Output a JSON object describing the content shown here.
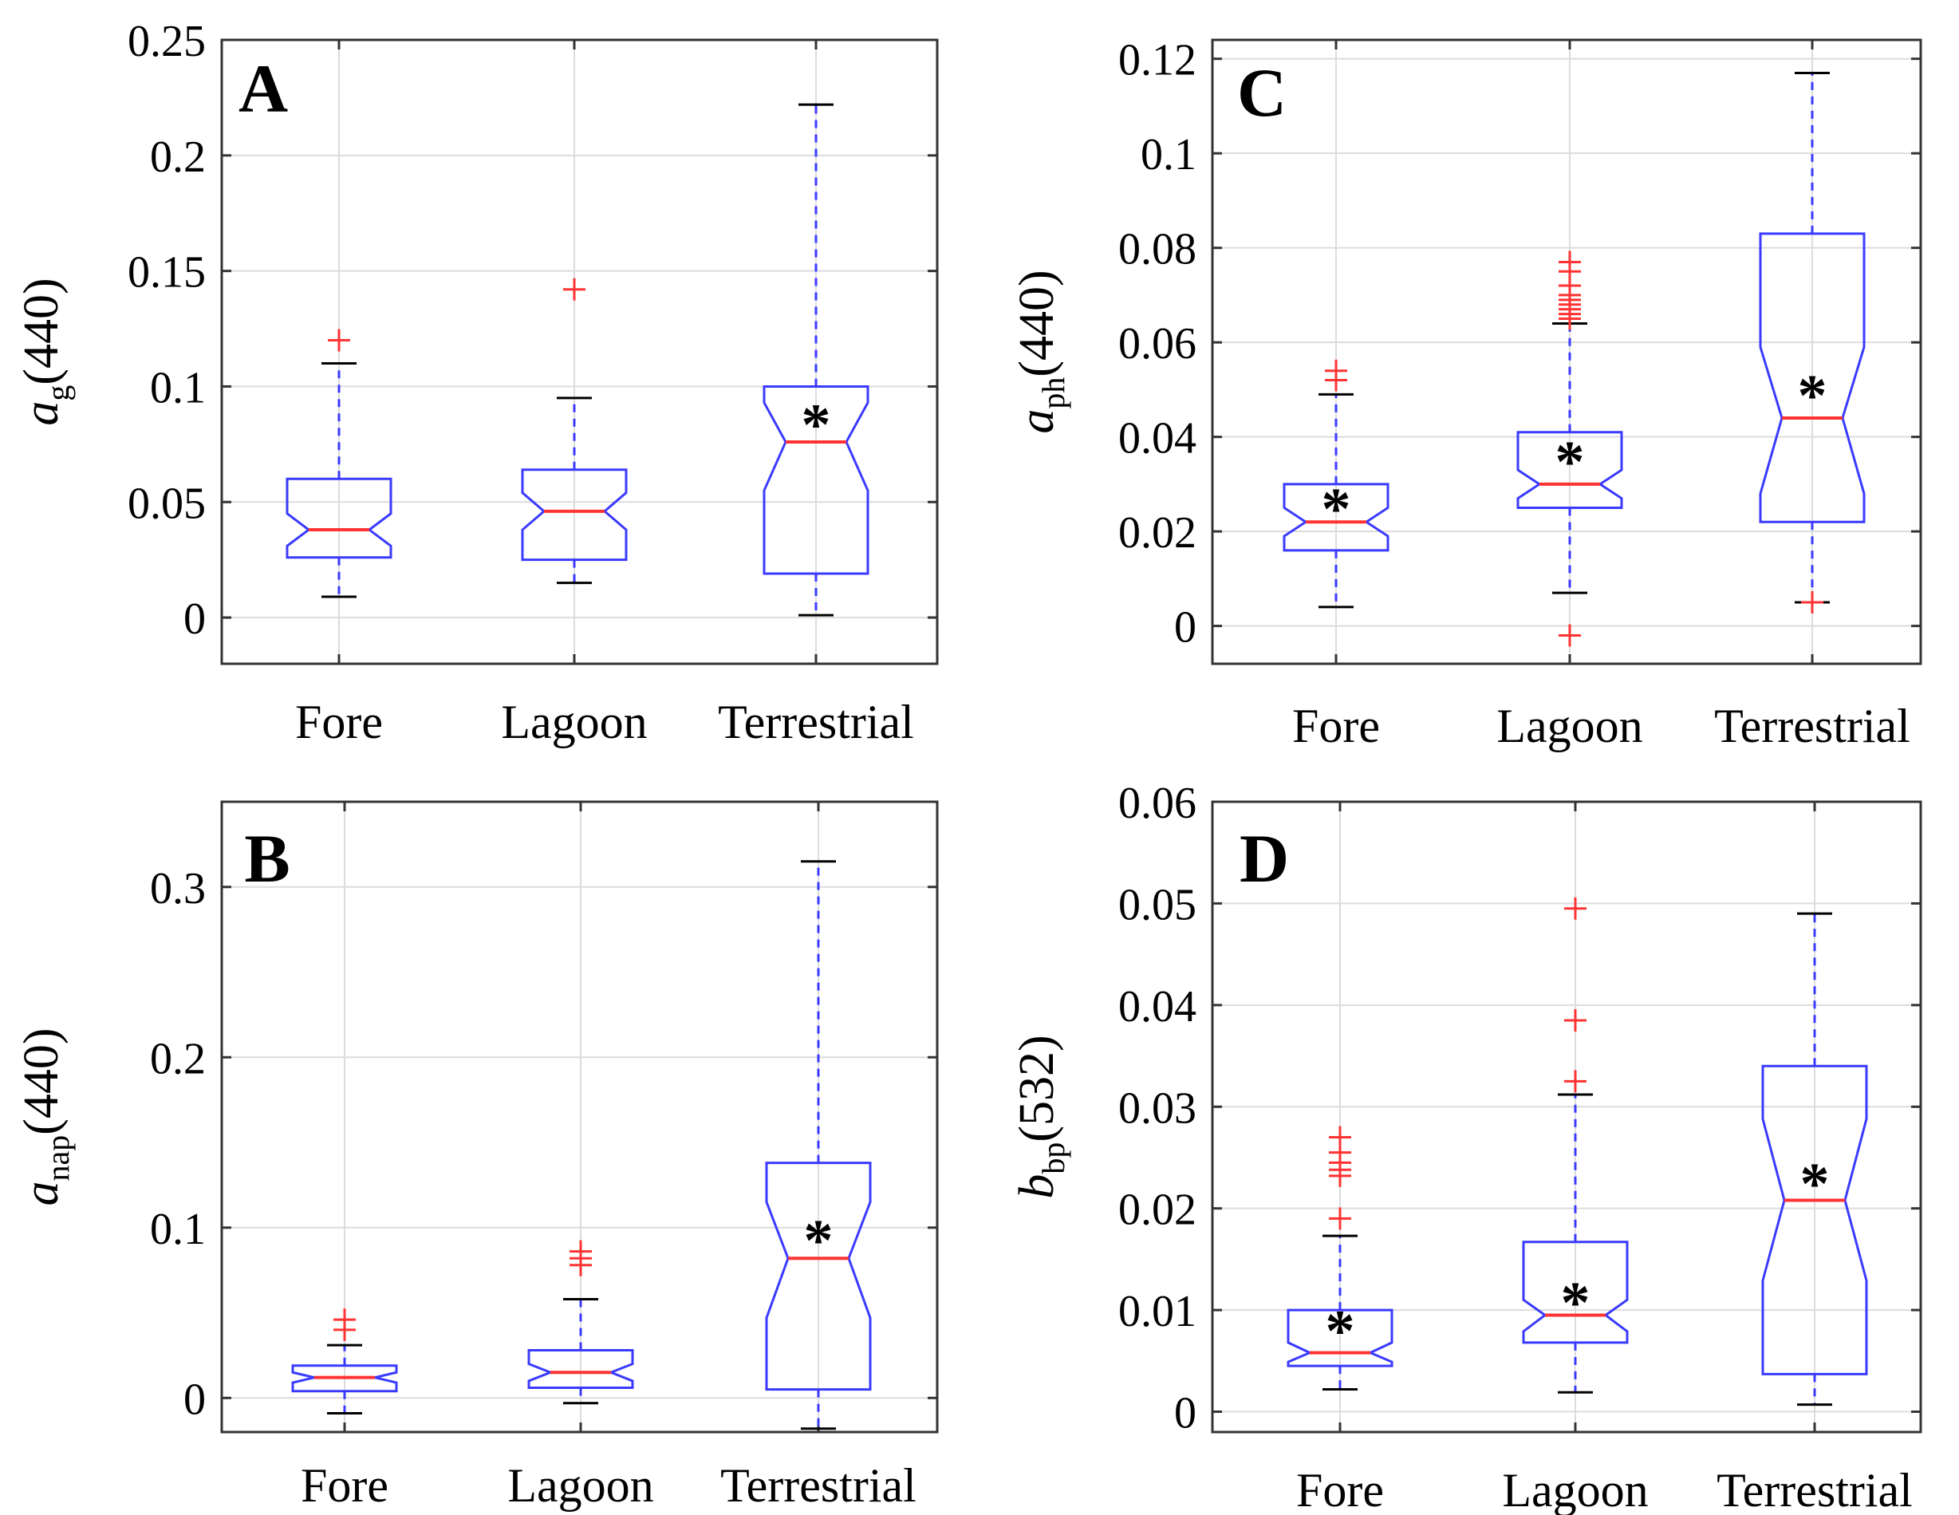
{
  "figure": {
    "categories": [
      "Fore",
      "Lagoon",
      "Terrestrial"
    ]
  },
  "chart_data": [
    {
      "type": "box",
      "panel_label": "A",
      "ylabel_main": "a",
      "ylabel_sub": "g",
      "ylabel_tail": "(440)",
      "categories": [
        "Fore",
        "Lagoon",
        "Terrestrial"
      ],
      "ylim": [
        -0.02,
        0.25
      ],
      "yticks": [
        0,
        0.05,
        0.1,
        0.15,
        0.2,
        0.25
      ],
      "ytick_labels": [
        "0",
        "0.05",
        "0.1",
        "0.15",
        "0.2",
        "0.25"
      ],
      "grid": true,
      "boxes": [
        {
          "name": "Fore",
          "whisker_low": 0.009,
          "q1": 0.026,
          "median": 0.038,
          "q3": 0.06,
          "whisker_high": 0.11,
          "notch_low": 0.031,
          "notch_high": 0.045,
          "outliers": [
            0.12
          ],
          "star": false
        },
        {
          "name": "Lagoon",
          "whisker_low": 0.015,
          "q1": 0.025,
          "median": 0.046,
          "q3": 0.064,
          "whisker_high": 0.095,
          "notch_low": 0.038,
          "notch_high": 0.054,
          "outliers": [
            0.142
          ],
          "star": false
        },
        {
          "name": "Terrestrial",
          "whisker_low": 0.001,
          "q1": 0.019,
          "median": 0.076,
          "q3": 0.1,
          "whisker_high": 0.222,
          "notch_low": 0.055,
          "notch_high": 0.093,
          "outliers": [],
          "star": true,
          "star_value": 0.086
        }
      ]
    },
    {
      "type": "box",
      "panel_label": "B",
      "ylabel_main": "a",
      "ylabel_sub": "nap",
      "ylabel_tail": "(440)",
      "categories": [
        "Fore",
        "Lagoon",
        "Terrestrial"
      ],
      "ylim": [
        -0.02,
        0.35
      ],
      "yticks": [
        0,
        0.1,
        0.2,
        0.3
      ],
      "ytick_labels": [
        "0",
        "0.1",
        "0.2",
        "0.3"
      ],
      "grid": true,
      "boxes": [
        {
          "name": "Fore",
          "whisker_low": -0.009,
          "q1": 0.004,
          "median": 0.012,
          "q3": 0.019,
          "whisker_high": 0.031,
          "notch_low": 0.009,
          "notch_high": 0.015,
          "outliers": [
            0.04,
            0.046
          ],
          "star": false
        },
        {
          "name": "Lagoon",
          "whisker_low": -0.003,
          "q1": 0.006,
          "median": 0.015,
          "q3": 0.028,
          "whisker_high": 0.058,
          "notch_low": 0.01,
          "notch_high": 0.02,
          "outliers": [
            0.078,
            0.082,
            0.086
          ],
          "star": false
        },
        {
          "name": "Terrestrial",
          "whisker_low": -0.018,
          "q1": 0.005,
          "median": 0.082,
          "q3": 0.138,
          "whisker_high": 0.315,
          "notch_low": 0.047,
          "notch_high": 0.115,
          "outliers": [],
          "star": true,
          "star_value": 0.096
        }
      ]
    },
    {
      "type": "box",
      "panel_label": "C",
      "ylabel_main": "a",
      "ylabel_sub": "ph",
      "ylabel_tail": "(440)",
      "categories": [
        "Fore",
        "Lagoon",
        "Terrestrial"
      ],
      "ylim": [
        -0.008,
        0.124
      ],
      "yticks": [
        0,
        0.02,
        0.04,
        0.06,
        0.08,
        0.1,
        0.12
      ],
      "ytick_labels": [
        "0",
        "0.02",
        "0.04",
        "0.06",
        "0.08",
        "0.1",
        "0.12"
      ],
      "grid": true,
      "boxes": [
        {
          "name": "Fore",
          "whisker_low": 0.004,
          "q1": 0.016,
          "median": 0.022,
          "q3": 0.03,
          "whisker_high": 0.049,
          "notch_low": 0.019,
          "notch_high": 0.025,
          "outliers": [
            0.052,
            0.054
          ],
          "star": true,
          "star_value": 0.026
        },
        {
          "name": "Lagoon",
          "whisker_low": 0.007,
          "q1": 0.025,
          "median": 0.03,
          "q3": 0.041,
          "whisker_high": 0.064,
          "notch_low": 0.027,
          "notch_high": 0.033,
          "outliers": [
            -0.002,
            0.065,
            0.066,
            0.067,
            0.068,
            0.069,
            0.07,
            0.072,
            0.075,
            0.077
          ],
          "star": true,
          "star_value": 0.036
        },
        {
          "name": "Terrestrial",
          "whisker_low": 0.005,
          "q1": 0.022,
          "median": 0.044,
          "q3": 0.083,
          "whisker_high": 0.117,
          "notch_low": 0.028,
          "notch_high": 0.059,
          "outliers": [
            0.005
          ],
          "star": true,
          "star_value": 0.05
        }
      ]
    },
    {
      "type": "box",
      "panel_label": "D",
      "ylabel_main": "b",
      "ylabel_sub": "bp",
      "ylabel_tail": "(532)",
      "categories": [
        "Fore",
        "Lagoon",
        "Terrestrial"
      ],
      "ylim": [
        -0.002,
        0.06
      ],
      "yticks": [
        0,
        0.01,
        0.02,
        0.03,
        0.04,
        0.05,
        0.06
      ],
      "ytick_labels": [
        "0",
        "0.01",
        "0.02",
        "0.03",
        "0.04",
        "0.05",
        "0.06"
      ],
      "grid": true,
      "boxes": [
        {
          "name": "Fore",
          "whisker_low": 0.0022,
          "q1": 0.0045,
          "median": 0.0058,
          "q3": 0.01,
          "whisker_high": 0.0173,
          "notch_low": 0.0049,
          "notch_high": 0.0068,
          "outliers": [
            0.019,
            0.0232,
            0.0238,
            0.0245,
            0.0255,
            0.027
          ],
          "star": true,
          "star_value": 0.0085
        },
        {
          "name": "Lagoon",
          "whisker_low": 0.0019,
          "q1": 0.0068,
          "median": 0.0095,
          "q3": 0.0167,
          "whisker_high": 0.0312,
          "notch_low": 0.0079,
          "notch_high": 0.011,
          "outliers": [
            0.0325,
            0.0385,
            0.0495
          ],
          "star": true,
          "star_value": 0.0113
        },
        {
          "name": "Terrestrial",
          "whisker_low": 0.0007,
          "q1": 0.0037,
          "median": 0.0208,
          "q3": 0.034,
          "whisker_high": 0.049,
          "notch_low": 0.0129,
          "notch_high": 0.0288,
          "outliers": [],
          "star": true,
          "star_value": 0.023
        }
      ]
    }
  ],
  "colors": {
    "box": "#3a3aff",
    "median": "#ff3333",
    "outlier": "#ff3333",
    "whisker_cap": "#000000",
    "grid": "#dcdcdc",
    "axes": "#333333",
    "text": "#000000"
  }
}
